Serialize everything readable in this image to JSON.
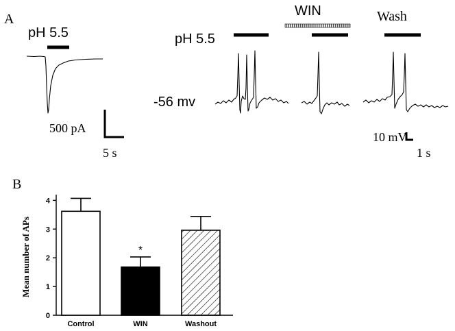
{
  "panel_a": {
    "label": "A",
    "current_trace": {
      "stimulus_label": "pH 5.5",
      "scale_current": "500 pA",
      "scale_time": "5 s"
    },
    "voltage_traces": {
      "stimulus_label": "pH 5.5",
      "drug_label": "WIN",
      "wash_label": "Wash",
      "resting_potential_label": "-56 mv",
      "scale_voltage": "10 mV",
      "scale_time": "1 s"
    }
  },
  "panel_b": {
    "label": "B"
  },
  "chart_data": {
    "type": "bar",
    "title": "",
    "xlabel": "",
    "ylabel": "Mean number of APs",
    "categories": [
      "Control",
      "WIN",
      "Washout"
    ],
    "values": [
      3.62,
      1.68,
      2.96
    ],
    "errors": [
      0.45,
      0.35,
      0.48
    ],
    "significance": [
      "",
      "*",
      ""
    ],
    "fills": [
      "white",
      "black",
      "hatched"
    ],
    "ylim": [
      0,
      4.2
    ],
    "yticks": [
      0,
      1,
      2,
      3,
      4
    ],
    "grid": false,
    "legend": "none"
  }
}
